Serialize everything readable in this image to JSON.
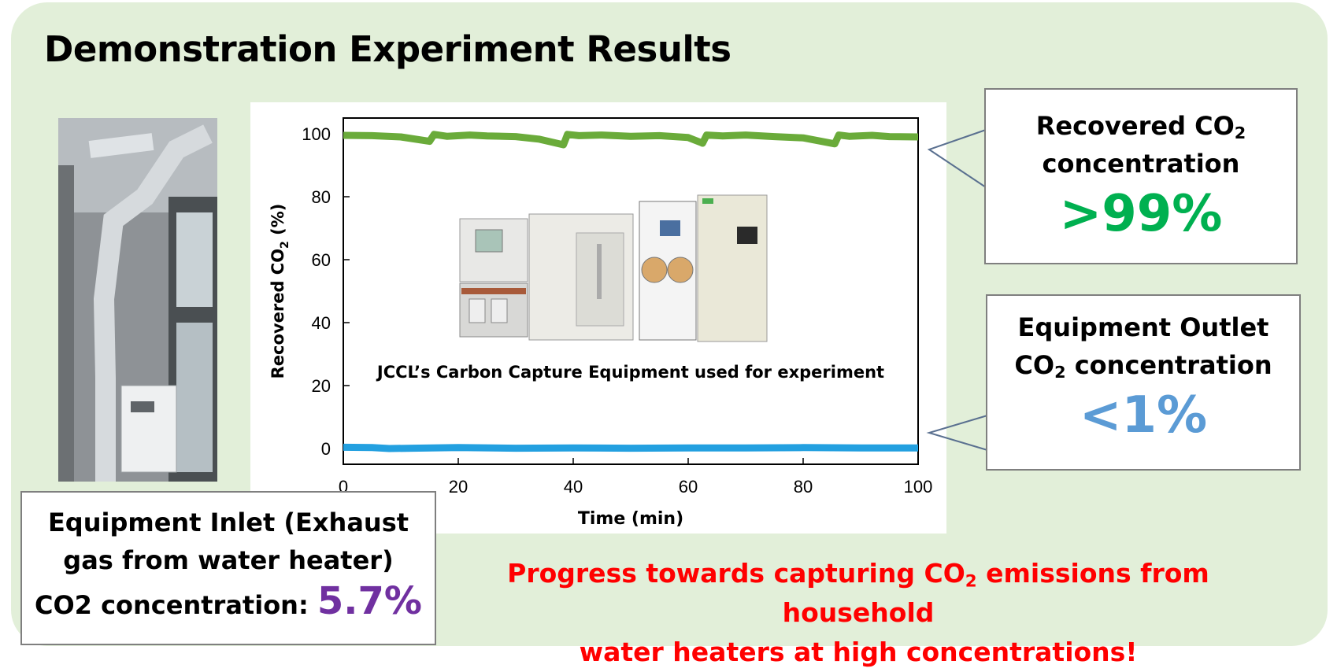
{
  "title": "Demonstration Experiment Results",
  "recovered_box": {
    "label_line1": "Recovered CO",
    "label_sub": "2",
    "label_line2": "concentration",
    "value": ">99%"
  },
  "outlet_box": {
    "label_line1": "Equipment Outlet",
    "label_line2_main": "CO",
    "label_line2_sub": "2",
    "label_line2_rest": " concentration",
    "value": "<1%"
  },
  "inlet_box": {
    "line1": "Equipment Inlet (Exhaust",
    "line2": "gas from water heater)",
    "line3": "CO2 concentration: ",
    "value": "5.7%"
  },
  "footer": {
    "line1_a": "Progress towards capturing CO",
    "line1_sub": "2",
    "line1_b": " emissions from household",
    "line2": "water heaters at high concentrations!"
  },
  "equipment_caption": "JCCL’s Carbon Capture Equipment used for experiment",
  "colors": {
    "panel": "#e2efd9",
    "green": "#6aab3a",
    "blue": "#23a0e0",
    "green_text": "#00b050",
    "blue_text": "#5b9bd5",
    "purple": "#7030a0",
    "red": "#ff0000"
  },
  "chart_data": {
    "type": "line",
    "xlabel": "Time (min)",
    "ylabel_main": "Recovered CO",
    "ylabel_sub": "2",
    "ylabel_rest": " (%)",
    "xlim": [
      0,
      100
    ],
    "ylim": [
      -5,
      105
    ],
    "xticks": [
      0,
      20,
      40,
      60,
      80,
      100
    ],
    "yticks": [
      0,
      20,
      40,
      60,
      80,
      100
    ],
    "grid": false,
    "series": [
      {
        "color": "#6aab3a",
        "x": [
          0,
          5,
          10,
          15,
          15.8,
          18,
          22,
          25,
          30,
          34,
          38.3,
          39,
          41,
          45,
          50,
          55,
          60,
          62.5,
          63.2,
          66,
          70,
          75,
          80,
          85.5,
          86.2,
          88,
          92,
          95,
          100
        ],
        "y": [
          99.5,
          99.4,
          99.0,
          97.6,
          99.8,
          99.2,
          99.6,
          99.3,
          99.1,
          98.3,
          96.5,
          99.8,
          99.4,
          99.6,
          99.2,
          99.4,
          98.8,
          97.0,
          99.6,
          99.3,
          99.6,
          99.1,
          98.7,
          96.8,
          99.6,
          99.2,
          99.5,
          99.1,
          99.0
        ]
      },
      {
        "color": "#23a0e0",
        "x": [
          0,
          5,
          8,
          12,
          20,
          30,
          40,
          50,
          60,
          70,
          80,
          90,
          100
        ],
        "y": [
          0.4,
          0.3,
          0.0,
          0.1,
          0.3,
          0.1,
          0.2,
          0.1,
          0.2,
          0.2,
          0.3,
          0.2,
          0.2
        ]
      }
    ]
  }
}
